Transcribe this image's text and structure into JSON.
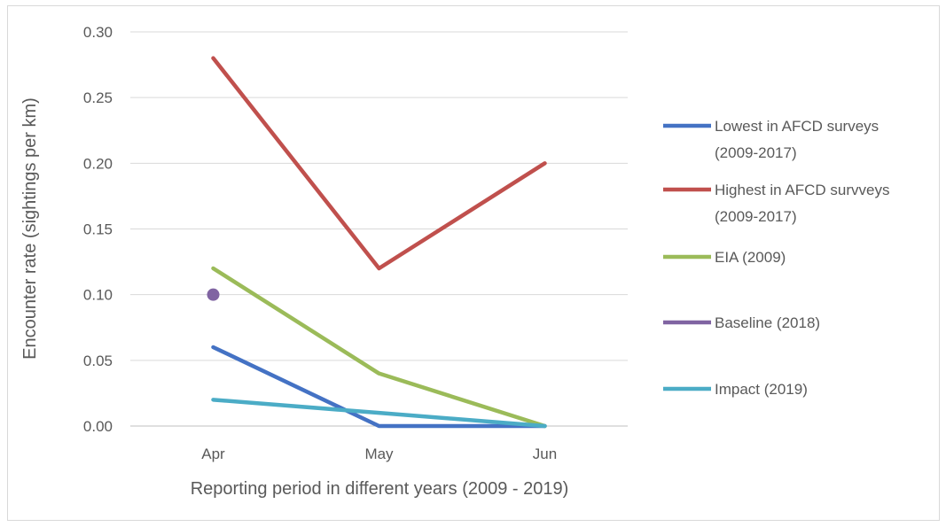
{
  "chart_data": {
    "type": "line",
    "categories": [
      "Apr",
      "May",
      "Jun"
    ],
    "xlabel": "Reporting period in different years (2009 - 2019)",
    "ylabel": "Encounter rate (sightings per km)",
    "ylim": [
      0,
      0.3
    ],
    "yticks": [
      "0.00",
      "0.05",
      "0.10",
      "0.15",
      "0.20",
      "0.25",
      "0.30"
    ],
    "grid": true,
    "legend_position": "right",
    "series": [
      {
        "name": "Lowest in AFCD surveys (2009-2017)",
        "name_lines": [
          "Lowest in AFCD surveys",
          "(2009-2017)"
        ],
        "color": "#4472c4",
        "values": [
          0.06,
          0.0,
          0.0
        ]
      },
      {
        "name": "Highest in AFCD survveys (2009-2017)",
        "name_lines": [
          "Highest in AFCD survveys",
          "(2009-2017)"
        ],
        "color": "#c0504d",
        "values": [
          0.28,
          0.12,
          0.2
        ]
      },
      {
        "name": "EIA (2009)",
        "name_lines": [
          "EIA (2009)"
        ],
        "color": "#9bbb59",
        "values": [
          0.12,
          0.04,
          0.0
        ]
      },
      {
        "name": "Baseline (2018)",
        "name_lines": [
          "Baseline (2018)"
        ],
        "color": "#8064a2",
        "values": [
          0.1,
          null,
          null
        ]
      },
      {
        "name": "Impact (2019)",
        "name_lines": [
          "Impact (2019)"
        ],
        "color": "#4bacc6",
        "values": [
          0.02,
          0.01,
          0.0
        ]
      }
    ]
  }
}
